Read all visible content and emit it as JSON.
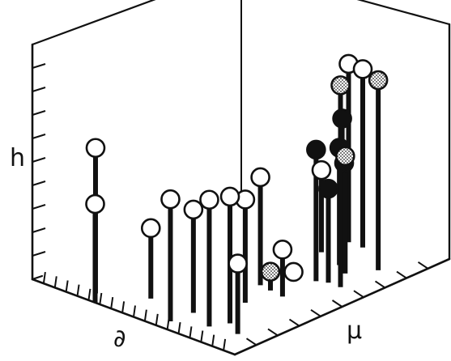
{
  "chart_data": {
    "type": "scatter",
    "variant": "3d-lollipop",
    "title": "",
    "axes": {
      "vertical_label": "h",
      "left_floor_label": "∂",
      "right_floor_label": "μ"
    },
    "legend": "none",
    "grid": false,
    "marker_styles": {
      "open": "#ffffff",
      "filled": "#111111",
      "dotted": "#bdbdbd"
    },
    "points": [
      {
        "u": 0.31,
        "v": 0.0,
        "h": 0.42,
        "style": "open"
      },
      {
        "u": 0.25,
        "v": 0.06,
        "h": 0.62,
        "style": "open"
      },
      {
        "u": 0.62,
        "v": 0.06,
        "h": 0.52,
        "style": "open"
      },
      {
        "u": 0.62,
        "v": 0.17,
        "h": 0.44,
        "style": "open"
      },
      {
        "u": 0.42,
        "v": 0.16,
        "h": 0.3,
        "style": "open"
      },
      {
        "u": 0.75,
        "v": 0.12,
        "h": 0.54,
        "style": "open"
      },
      {
        "u": 0.78,
        "v": 0.19,
        "h": 0.54,
        "style": "open"
      },
      {
        "u": 0.87,
        "v": 0.14,
        "h": 0.3,
        "style": "open"
      },
      {
        "u": 0.68,
        "v": 0.36,
        "h": 0.44,
        "style": "open"
      },
      {
        "u": 0.6,
        "v": 0.51,
        "h": 0.46,
        "style": "open"
      },
      {
        "u": 0.73,
        "v": 0.49,
        "h": 0.2,
        "style": "open"
      },
      {
        "u": 0.64,
        "v": 0.63,
        "h": 0.03,
        "style": "open"
      },
      {
        "u": 0.53,
        "v": 0.87,
        "h": 0.35,
        "style": "open"
      },
      {
        "u": 0.53,
        "v": 1.0,
        "h": 0.76,
        "style": "open"
      },
      {
        "u": 0.6,
        "v": 1.0,
        "h": 0.76,
        "style": "open"
      },
      {
        "u": 0.71,
        "v": 0.67,
        "h": 0.56,
        "style": "filled"
      },
      {
        "u": 0.75,
        "v": 0.69,
        "h": 0.4,
        "style": "filled"
      },
      {
        "u": 0.66,
        "v": 0.83,
        "h": 0.5,
        "style": "filled"
      },
      {
        "u": 0.55,
        "v": 0.95,
        "h": 0.55,
        "style": "filled"
      },
      {
        "u": 0.57,
        "v": 0.94,
        "h": 0.37,
        "style": "filled"
      },
      {
        "u": 0.81,
        "v": 0.69,
        "h": 0.86,
        "style": "dotted"
      },
      {
        "u": 0.79,
        "v": 0.89,
        "h": 0.81,
        "style": "dotted"
      },
      {
        "u": 0.73,
        "v": 0.79,
        "h": 0.5,
        "style": "dotted"
      },
      {
        "u": 0.66,
        "v": 0.5,
        "h": 0.08,
        "style": "dotted"
      }
    ]
  }
}
